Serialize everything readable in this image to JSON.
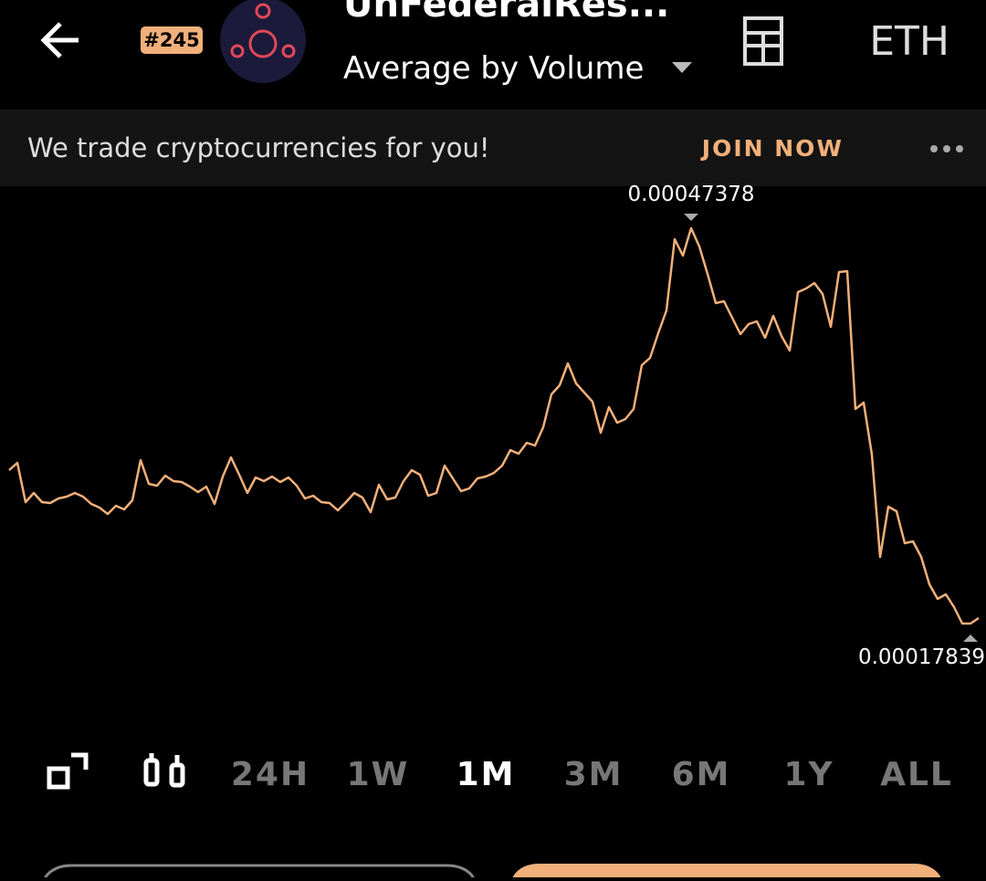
{
  "header": {
    "rank": "#245",
    "title": "UnFederalRes...",
    "subtitle": "Average by Volume",
    "currency": "ETH"
  },
  "banner": {
    "text": "We trade cryptocurrencies for you!",
    "action": "JOIN NOW"
  },
  "chart_data": {
    "type": "line",
    "color": "#f2b07a",
    "values": [
      0.000293,
      0.00029846,
      0.00026912,
      0.00027594,
      0.00026912,
      0.00026844,
      0.00027185,
      0.00027322,
      0.00027594,
      0.00027322,
      0.00026776,
      0.00026503,
      0.00026025,
      0.00026639,
      0.00026367,
      0.00027049,
      0.0003005,
      0.00028277,
      0.0002814,
      0.00028891,
      0.00028481,
      0.00028413,
      0.00028072,
      0.00027663,
      0.00028072,
      0.00026776,
      0.00028822,
      0.00030255,
      0.00028959,
      0.00027594,
      0.00028754,
      0.00028481,
      0.00028822,
      0.00028413,
      0.00028754,
      0.0002814,
      0.00027185,
      0.0002739,
      0.00026912,
      0.00026844,
      0.00026298,
      0.00026912,
      0.00027594,
      0.00027253,
      0.00026162,
      0.00028208,
      0.00027117,
      0.00027253,
      0.00028481,
      0.000293,
      0.00028959,
      0.0002739,
      0.00027594,
      0.00029641,
      0.00028686,
      0.00027731,
      0.00027936,
      0.00028686,
      0.00028822,
      0.00029095,
      0.00029641,
      0.00030801,
      0.00030528,
      0.00031347,
      0.00031142,
      0.00032506,
      0.00034962,
      0.00035644,
      0.00037282,
      0.00035781,
      0.00035099,
      0.00034416,
      0.00032097,
      0.00034007,
      0.00032847,
      0.0003312,
      0.00033871,
      0.00037145,
      0.00037691,
      0.00039533,
      0.00041238,
      0.0004656,
      0.00045332,
      0.00047378,
      0.00046014,
      0.00043967,
      0.00041784,
      0.00041921,
      0.00040693,
      0.00039465,
      0.00040215,
      0.0004042,
      0.00039192,
      0.00040829,
      0.00039328,
      0.00038237,
      0.00042603,
      0.00042876,
      0.00043285,
      0.00042466,
      0.00040011,
      0.00044104,
      0.00044172,
      0.00033871,
      0.00034348,
      0.0003046,
      0.00022819,
      0.00026571,
      0.0002623,
      0.00023842,
      0.00023979,
      0.00022819,
      0.00020772,
      0.00019681,
      0.00020022,
      0.00019067,
      0.00017839,
      0.00017839,
      0.00018248
    ]
  },
  "ranges": {
    "items": [
      "24H",
      "1W",
      "1M",
      "3M",
      "6M",
      "1Y",
      "ALL"
    ],
    "active": "1M"
  }
}
